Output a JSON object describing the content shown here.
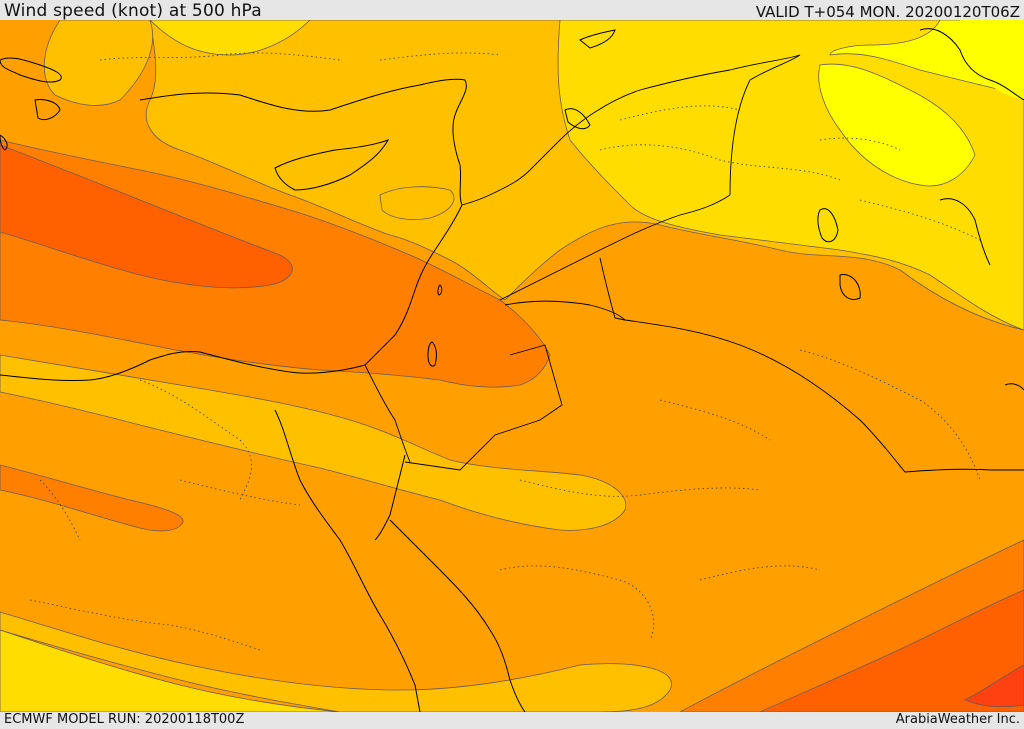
{
  "header": {
    "title": "Wind speed (knot) at 500 hPa",
    "valid_time": "VALID T+054 MON. 20200120T06Z"
  },
  "footer": {
    "model_run": "ECMWF MODEL RUN: 20200118T00Z",
    "credit": "ArabiaWeather Inc."
  },
  "colors": {
    "speed_lowest": "#ffff00",
    "speed_low": "#ffdd00",
    "speed_mid_low": "#ffc000",
    "speed_mid": "#ffa000",
    "speed_mid_high": "#ff8000",
    "speed_high": "#ff6000",
    "speed_highest": "#ff4010",
    "coast_border": "#000000",
    "contour": "#6b5a55"
  }
}
